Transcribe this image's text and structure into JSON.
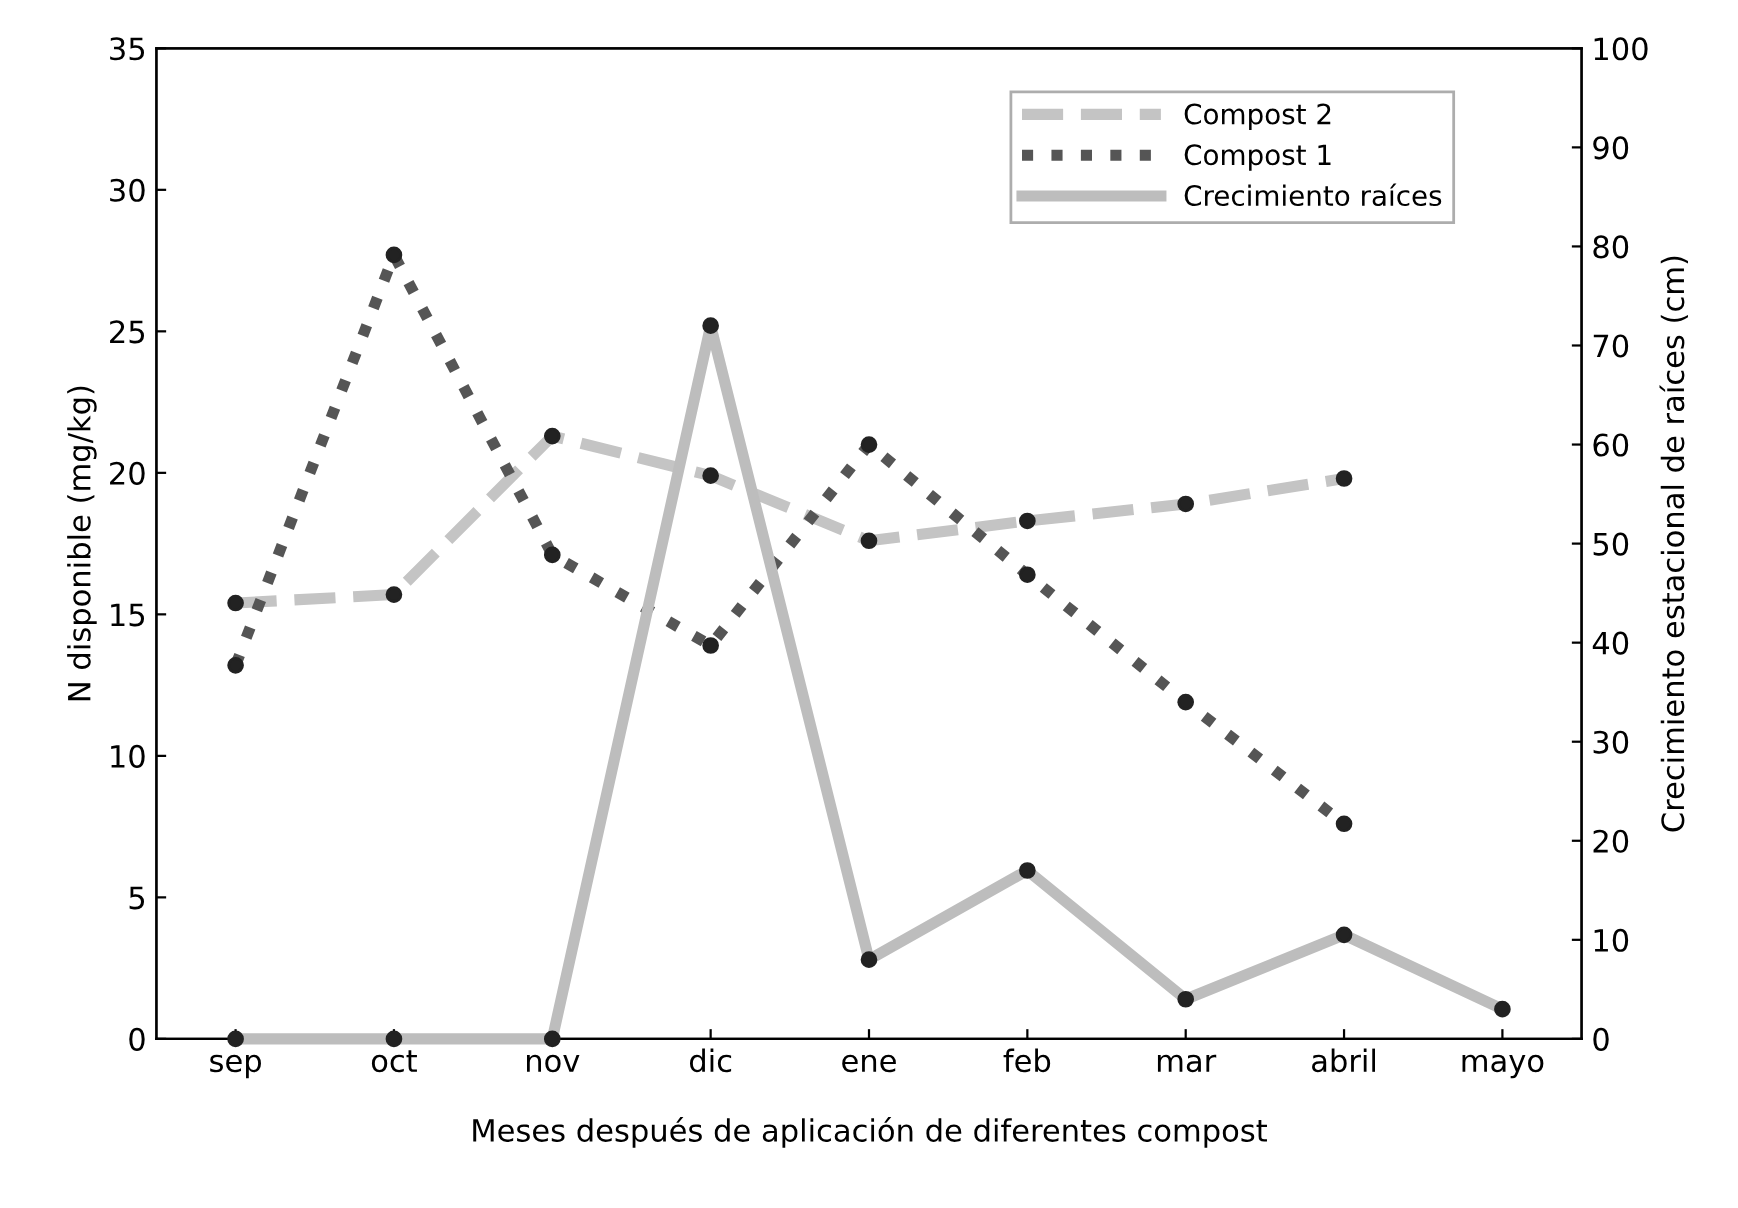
{
  "chart_data": {
    "type": "line",
    "xlabel": "Meses después de aplicación de diferentes compost",
    "ylabel": "N disponible (mg/kg)",
    "y2label": "Crecimiento estacional de raíces (cm)",
    "categories": [
      "sep",
      "oct",
      "nov",
      "dic",
      "ene",
      "feb",
      "mar",
      "abril",
      "mayo"
    ],
    "series": [
      {
        "name": "Compost 2",
        "color": "#c4c4c4",
        "line_style": "dashed",
        "values": [
          15.4,
          15.7,
          21.3,
          19.9,
          17.6,
          18.3,
          18.9,
          19.8,
          null
        ]
      },
      {
        "name": "Compost 1",
        "color": "#555555",
        "line_style": "dotted",
        "values": [
          13.2,
          27.7,
          17.1,
          13.9,
          21.0,
          16.4,
          11.9,
          7.6,
          null
        ]
      },
      {
        "name": "Crecimiento raíces",
        "color": "#bdbdbd",
        "line_style": "solid",
        "axis": "y2",
        "values": [
          0,
          0,
          0,
          72,
          8,
          17,
          4,
          10.5,
          3
        ]
      }
    ],
    "ylim": [
      0,
      35
    ],
    "yticks": [
      0,
      5,
      10,
      15,
      20,
      25,
      30,
      35
    ],
    "y2lim": [
      0,
      100
    ],
    "y2ticks": [
      0,
      10,
      20,
      30,
      40,
      50,
      60,
      70,
      80,
      90,
      100
    ],
    "marker": "circle",
    "legend": "top right",
    "grid": false
  }
}
